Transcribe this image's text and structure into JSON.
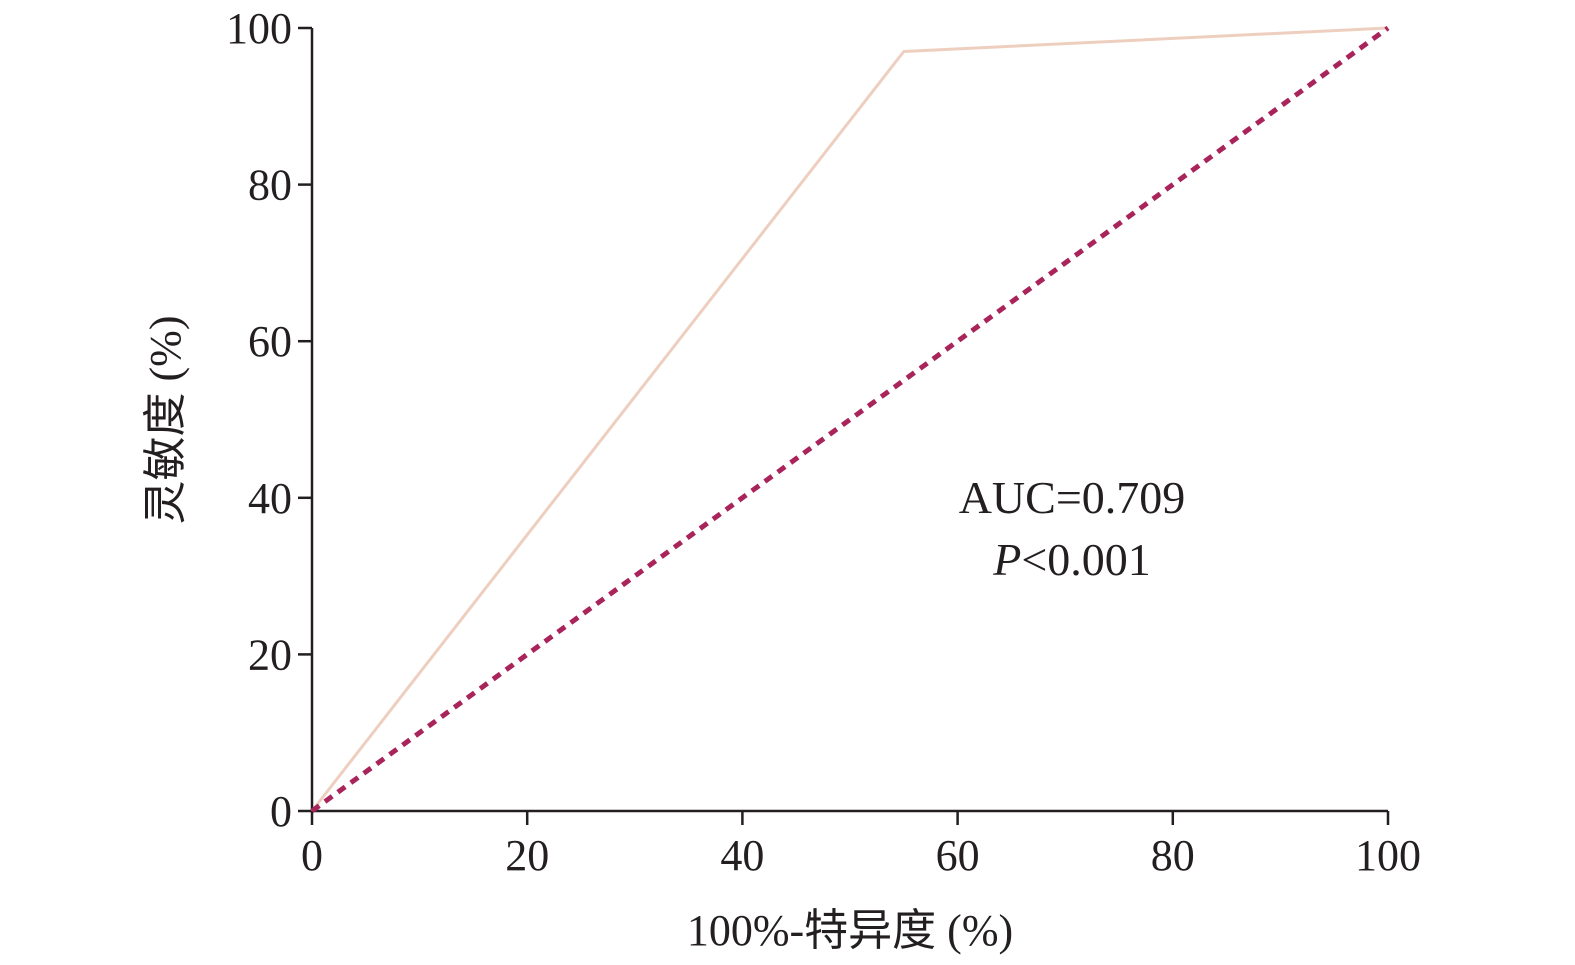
{
  "chart_data": {
    "type": "line",
    "title": "",
    "xlabel": "100%-特异度 (%)",
    "ylabel": "灵敏度 (%)",
    "xlim": [
      0,
      100
    ],
    "ylim": [
      0,
      100
    ],
    "x_ticks": [
      "0",
      "20",
      "40",
      "60",
      "80",
      "100"
    ],
    "y_ticks": [
      "0",
      "20",
      "40",
      "60",
      "80",
      "100"
    ],
    "grid": false,
    "legend": "none",
    "series": [
      {
        "style": "solid",
        "color": "#eecfbf",
        "x": [
          0,
          55,
          100
        ],
        "y": [
          0,
          97,
          100
        ]
      },
      {
        "style": "dashed",
        "color": "#a8245a",
        "x": [
          0,
          100
        ],
        "y": [
          0,
          100
        ]
      }
    ],
    "annotations": {
      "auc": "AUC=0.709",
      "p_italic": "P",
      "p_rest": "<0.001"
    }
  }
}
